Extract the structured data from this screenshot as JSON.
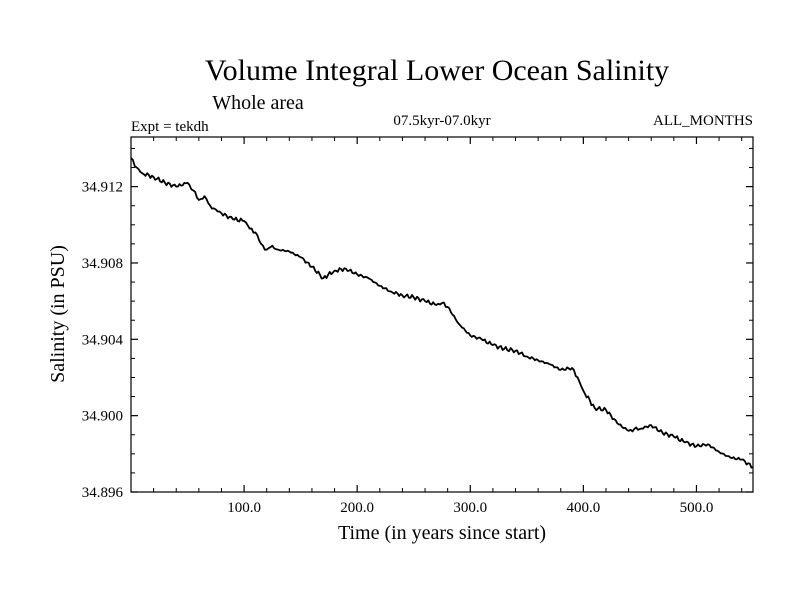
{
  "chart_data": {
    "type": "line",
    "title": "Volume Integral Lower Ocean Salinity",
    "subtitle": "Whole area",
    "left_label": "Expt = tekdh",
    "center_label": "07.5kyr-07.0kyr",
    "right_label": "ALL_MONTHS",
    "xlabel": "Time (in years since start)",
    "ylabel": "Salinity (in PSU)",
    "xlim": [
      0,
      550
    ],
    "ylim": [
      34.896,
      34.9146
    ],
    "x_ticks": [
      100,
      200,
      300,
      400,
      500
    ],
    "x_tick_labels": [
      "100.0",
      "200.0",
      "300.0",
      "400.0",
      "500.0"
    ],
    "y_ticks": [
      34.896,
      34.9,
      34.904,
      34.908,
      34.912
    ],
    "y_tick_labels": [
      "34.896",
      "34.900",
      "34.904",
      "34.908",
      "34.912"
    ],
    "x_minor_step": 20,
    "y_minor_step": 0.001,
    "grid": false,
    "series": [
      {
        "name": "salinity",
        "color": "#000000",
        "x": [
          0,
          5,
          10,
          20,
          30,
          40,
          50,
          55,
          60,
          65,
          70,
          75,
          80,
          90,
          100,
          105,
          110,
          115,
          120,
          125,
          130,
          140,
          150,
          160,
          170,
          180,
          190,
          200,
          210,
          220,
          230,
          240,
          250,
          260,
          270,
          275,
          280,
          290,
          300,
          310,
          320,
          330,
          340,
          350,
          360,
          370,
          380,
          390,
          395,
          400,
          410,
          420,
          430,
          440,
          445,
          450,
          460,
          470,
          480,
          490,
          500,
          510,
          520,
          530,
          540,
          550
        ],
        "values": [
          34.9135,
          34.913,
          34.9127,
          34.9125,
          34.9122,
          34.912,
          34.9122,
          34.9118,
          34.9113,
          34.9115,
          34.911,
          34.9108,
          34.9106,
          34.9103,
          34.9102,
          34.9098,
          34.9096,
          34.909,
          34.9087,
          34.9089,
          34.9087,
          34.9086,
          34.9083,
          34.9078,
          34.9072,
          34.9076,
          34.9077,
          34.9074,
          34.9072,
          34.9068,
          34.9065,
          34.9063,
          34.9062,
          34.906,
          34.9058,
          34.9059,
          34.9057,
          34.9048,
          34.9042,
          34.904,
          34.9037,
          34.9035,
          34.9034,
          34.9031,
          34.9029,
          34.9027,
          34.9024,
          34.9025,
          34.902,
          34.9013,
          34.9004,
          34.9003,
          34.8996,
          34.8992,
          34.8993,
          34.8993,
          34.8995,
          34.8991,
          34.8989,
          34.8986,
          34.8984,
          34.8985,
          34.8981,
          34.8978,
          34.8977,
          34.8973
        ]
      }
    ]
  }
}
